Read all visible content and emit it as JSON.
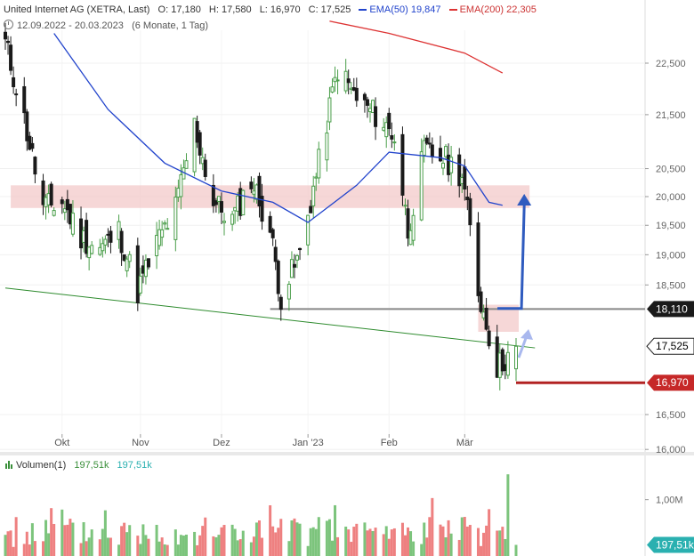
{
  "header": {
    "instrument": "United Internet AG (XETRA, Last)",
    "open": "O: 17,180",
    "high": "H: 17,580",
    "low": "L: 16,970",
    "close": "C: 17,525",
    "ema50_label": "EMA(50)",
    "ema50_value": "19,847",
    "ema200_label": "EMA(200)",
    "ema200_value": "22,305",
    "range": "12.09.2022 - 20.03.2023",
    "period": "(6 Monate, 1 Tag)"
  },
  "volume_header": {
    "label": "Volumen(1)",
    "value1": "197,51k",
    "value2": "197,51k"
  },
  "colors": {
    "up": "#4a9e4a",
    "down": "#1a1a1a",
    "ema50": "#2244cc",
    "ema200": "#dd3333",
    "trendline": "#2e8b2e",
    "zone": "#f3caca",
    "arrow": "#2f5bbf",
    "arrow_light": "#a9b8ee",
    "vol_up": "#7cc47c",
    "vol_down": "#ee8080",
    "level_18110": "#888888",
    "stop_line": "#b22222"
  },
  "chart_data": {
    "type": "candlestick",
    "y_axis": {
      "scale": "log",
      "ticks": [
        {
          "value": 22.5,
          "label": "22,500"
        },
        {
          "value": 21.5,
          "label": "21,500"
        },
        {
          "value": 20.5,
          "label": "20,500"
        },
        {
          "value": 20.0,
          "label": "20,000"
        },
        {
          "value": 19.5,
          "label": "19,500"
        },
        {
          "value": 19.0,
          "label": "19,000"
        },
        {
          "value": 18.5,
          "label": "18,500"
        },
        {
          "value": 16.5,
          "label": "16,500"
        },
        {
          "value": 16.0,
          "label": "16,000"
        }
      ],
      "range": [
        15.95,
        23.4
      ]
    },
    "x_axis": {
      "start": "2022-09-12",
      "end": "2023-03-20",
      "month_labels": [
        {
          "label": "Okt",
          "date": "2022-10-03"
        },
        {
          "label": "Nov",
          "date": "2022-11-01"
        },
        {
          "label": "Dez",
          "date": "2022-12-01"
        },
        {
          "label": "Jan '23",
          "date": "2023-01-02"
        },
        {
          "label": "Feb",
          "date": "2023-02-01"
        },
        {
          "label": "Mär",
          "date": "2023-03-01"
        }
      ]
    },
    "key_points": [
      {
        "date": "2022-09-12",
        "close": 22.9
      },
      {
        "date": "2022-09-19",
        "close": 21.4
      },
      {
        "date": "2022-09-26",
        "close": 19.8
      },
      {
        "date": "2022-10-03",
        "close": 19.9
      },
      {
        "date": "2022-10-10",
        "close": 19.3
      },
      {
        "date": "2022-10-17",
        "close": 19.1
      },
      {
        "date": "2022-10-24",
        "close": 19.4
      },
      {
        "date": "2022-10-31",
        "close": 18.4
      },
      {
        "date": "2022-11-07",
        "close": 19.2
      },
      {
        "date": "2022-11-14",
        "close": 19.8
      },
      {
        "date": "2022-11-21",
        "close": 21.3
      },
      {
        "date": "2022-11-28",
        "close": 19.9
      },
      {
        "date": "2022-12-05",
        "close": 19.6
      },
      {
        "date": "2022-12-12",
        "close": 20.3
      },
      {
        "date": "2022-12-19",
        "close": 19.4
      },
      {
        "date": "2022-12-23",
        "close": 18.3
      },
      {
        "date": "2022-12-30",
        "close": 19.0
      },
      {
        "date": "2023-01-06",
        "close": 20.6
      },
      {
        "date": "2023-01-13",
        "close": 22.4
      },
      {
        "date": "2023-01-20",
        "close": 21.8
      },
      {
        "date": "2023-01-27",
        "close": 21.5
      },
      {
        "date": "2023-02-03",
        "close": 21.1
      },
      {
        "date": "2023-02-08",
        "close": 19.4
      },
      {
        "date": "2023-02-14",
        "close": 20.8
      },
      {
        "date": "2023-02-21",
        "close": 20.7
      },
      {
        "date": "2023-02-28",
        "close": 20.4
      },
      {
        "date": "2023-03-06",
        "close": 18.4
      },
      {
        "date": "2023-03-13",
        "close": 17.2
      },
      {
        "date": "2023-03-20",
        "close": 17.525
      }
    ],
    "ema50": [
      {
        "date": "2022-09-30",
        "value": 23.1
      },
      {
        "date": "2022-10-20",
        "value": 21.6
      },
      {
        "date": "2022-11-10",
        "value": 20.6
      },
      {
        "date": "2022-12-01",
        "value": 20.1
      },
      {
        "date": "2022-12-20",
        "value": 19.9
      },
      {
        "date": "2023-01-02",
        "value": 19.55
      },
      {
        "date": "2023-01-20",
        "value": 20.2
      },
      {
        "date": "2023-02-01",
        "value": 20.8
      },
      {
        "date": "2023-02-20",
        "value": 20.7
      },
      {
        "date": "2023-03-01",
        "value": 20.55
      },
      {
        "date": "2023-03-10",
        "value": 19.9
      },
      {
        "date": "2023-03-15",
        "value": 19.847
      }
    ],
    "ema200": [
      {
        "date": "2023-01-10",
        "value": 23.35
      },
      {
        "date": "2023-02-01",
        "value": 23.1
      },
      {
        "date": "2023-03-01",
        "value": 22.7
      },
      {
        "date": "2023-03-15",
        "value": 22.305
      }
    ],
    "trendline": [
      {
        "date": "2022-09-12",
        "value": 18.45
      },
      {
        "date": "2023-03-27",
        "value": 17.5
      }
    ],
    "resistance_zone": {
      "start": "2022-09-14",
      "end": "2023-03-25",
      "low": 19.8,
      "high": 20.2
    },
    "entry_zone": {
      "start": "2023-03-06",
      "end": "2023-03-21",
      "low": 17.75,
      "high": 18.18
    },
    "levels": [
      {
        "value": 18.11,
        "label": "18,110",
        "color": "#888888"
      },
      {
        "value": 16.97,
        "label": "16,970",
        "color": "#b22222"
      }
    ],
    "last_price": {
      "value": 17.525,
      "label": "17,525"
    },
    "volume": {
      "ticks": [
        {
          "value": 1000,
          "label": "1,00M"
        }
      ],
      "last": {
        "value": 197.51,
        "label": "197,51k"
      },
      "max": 1500
    }
  }
}
